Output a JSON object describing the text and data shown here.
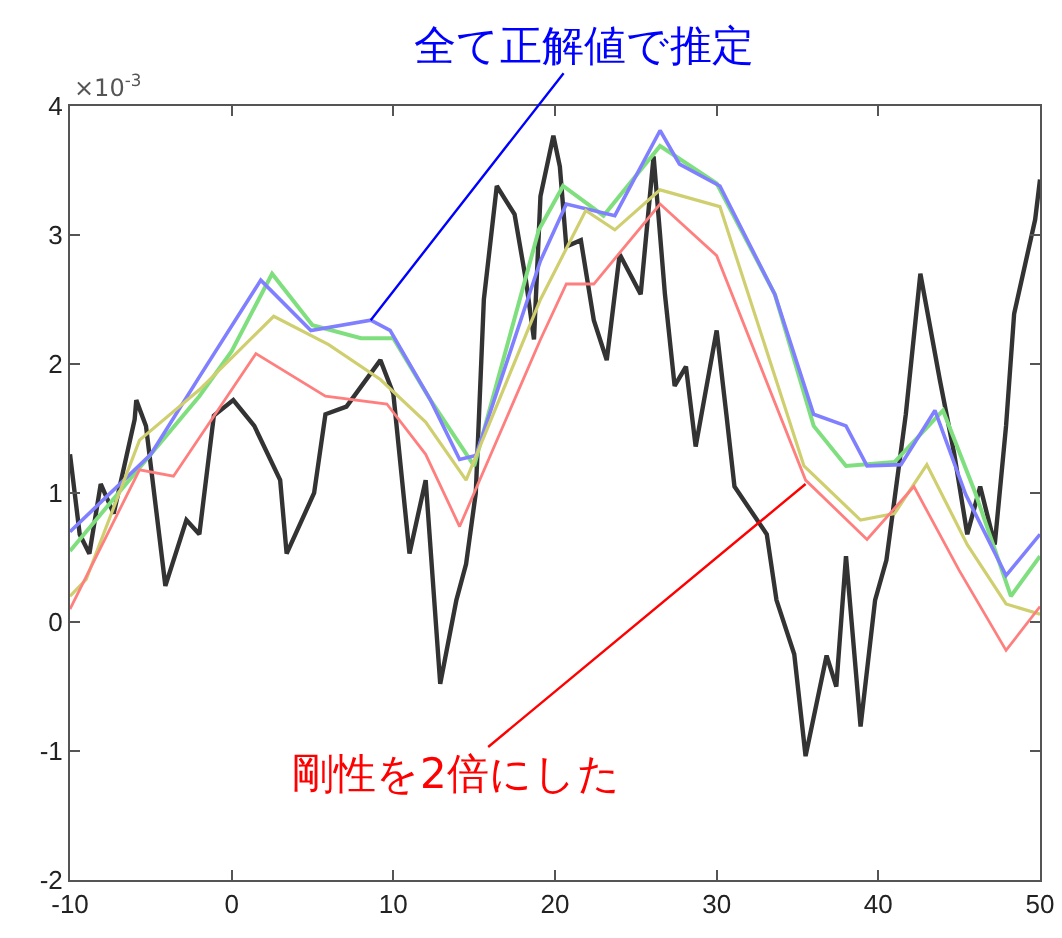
{
  "chart_data": {
    "type": "line",
    "xlim": [
      -10,
      50
    ],
    "xticks": [
      -10,
      0,
      10,
      20,
      30,
      40,
      50
    ],
    "ylim": [
      -2,
      4
    ],
    "yticks": [
      -2,
      -1,
      0,
      1,
      2,
      3,
      4
    ],
    "grid": false,
    "marker": "none",
    "line_style": "solid",
    "annotations": [
      "×10$^{-3}$",
      {
        "text": "全て正解値で推定",
        "x": 8.6,
        "y": 2.34
      },
      {
        "text": "剛性を2倍にした",
        "x": 35.5,
        "y": 1.07
      }
    ],
    "series": [
      {
        "color": "#333333",
        "x": [
          -10,
          -9.4,
          -8.8,
          -8.1,
          -7.3,
          -6,
          -5.9,
          -5.3,
          -4.1,
          -2.8,
          -2,
          -1.1,
          0.1,
          1.4,
          3,
          3.4,
          5.1,
          5.8,
          7.1,
          9.2,
          10,
          11,
          12,
          12.9,
          13.9,
          14.5,
          15.1,
          15.6,
          16.4,
          17.5,
          18.2,
          18.7,
          19.1,
          19.9,
          20.3,
          20.7,
          21.6,
          22.4,
          23.2,
          24,
          25.3,
          26.1,
          26.8,
          27.4,
          28.1,
          28.7,
          30,
          30.6,
          31.1,
          33.1,
          33.7,
          34.8,
          35.5,
          36.8,
          37.4,
          38,
          38.9,
          39.8,
          40.5,
          41.7,
          42.6,
          43.8,
          44.7,
          45.5,
          46.3,
          47.2,
          47.9,
          48.4,
          49.7,
          50
        ],
        "values": [
          1.3,
          0.68,
          0.53,
          1.07,
          0.84,
          1.57,
          1.72,
          1.52,
          0.28,
          0.79,
          0.68,
          1.6,
          1.72,
          1.52,
          1.1,
          0.53,
          1.0,
          1.61,
          1.67,
          2.03,
          1.77,
          0.53,
          1.1,
          -0.48,
          0.17,
          0.45,
          1.0,
          2.5,
          3.38,
          3.16,
          2.65,
          2.19,
          3.3,
          3.77,
          3.53,
          2.91,
          2.96,
          2.34,
          2.03,
          2.85,
          2.54,
          3.61,
          2.54,
          1.83,
          1.98,
          1.36,
          2.26,
          1.61,
          1.05,
          0.68,
          0.17,
          -0.25,
          -1.04,
          -0.26,
          -0.5,
          0.51,
          -0.81,
          0.17,
          0.48,
          1.61,
          2.7,
          1.88,
          1.3,
          0.68,
          1.05,
          0.6,
          1.52,
          2.39,
          3.12,
          3.43
        ]
      },
      {
        "color": "#7fdf7f",
        "x": [
          -10,
          -5,
          -2,
          0,
          2.5,
          5,
          8,
          10,
          12.3,
          15,
          19,
          20.5,
          23,
          26.5,
          30,
          33.6,
          36,
          38,
          41,
          44,
          46,
          48.2,
          50
        ],
        "values": [
          0.55,
          1.3,
          1.75,
          2.1,
          2.7,
          2.3,
          2.2,
          2.2,
          1.72,
          1.21,
          3.04,
          3.38,
          3.15,
          3.69,
          3.4,
          2.54,
          1.52,
          1.21,
          1.24,
          1.64,
          1.0,
          0.2,
          0.51
        ]
      },
      {
        "color": "#7f7fff",
        "x": [
          -10,
          -5,
          -2,
          1.8,
          4.9,
          8.6,
          9.8,
          12.3,
          14.1,
          15.1,
          19.1,
          20.7,
          23.7,
          26.5,
          27.7,
          30.2,
          33.6,
          36,
          38,
          39.3,
          41.4,
          43.5,
          45.4,
          47.9,
          50
        ],
        "values": [
          0.7,
          1.3,
          1.9,
          2.65,
          2.26,
          2.34,
          2.26,
          1.72,
          1.26,
          1.29,
          2.8,
          3.24,
          3.15,
          3.81,
          3.55,
          3.38,
          2.54,
          1.61,
          1.52,
          1.21,
          1.22,
          1.64,
          0.99,
          0.36,
          0.68
        ]
      },
      {
        "color": "#cfcf6f",
        "x": [
          -10,
          -9,
          -5.7,
          -2,
          2.6,
          6,
          9.2,
          12,
          14.5,
          19.1,
          21.9,
          23.7,
          26.5,
          30.2,
          35.4,
          38.9,
          41,
          43,
          45.5,
          47.9,
          50
        ],
        "values": [
          0.2,
          0.33,
          1.41,
          1.8,
          2.37,
          2.15,
          1.88,
          1.55,
          1.1,
          2.5,
          3.19,
          3.04,
          3.35,
          3.22,
          1.21,
          0.79,
          0.84,
          1.22,
          0.6,
          0.14,
          0.06
        ]
      },
      {
        "color": "#ff7f7f",
        "x": [
          -10,
          -5.7,
          -3.6,
          1.5,
          5.8,
          9.6,
          12,
          14.1,
          19.1,
          20.7,
          22.4,
          26.5,
          30,
          35.5,
          39.3,
          42.2,
          45,
          47.9,
          50
        ],
        "values": [
          0.1,
          1.18,
          1.13,
          2.08,
          1.75,
          1.69,
          1.3,
          0.74,
          2.19,
          2.62,
          2.62,
          3.24,
          2.84,
          1.1,
          0.64,
          1.05,
          0.4,
          -0.22,
          0.12
        ]
      }
    ]
  }
}
